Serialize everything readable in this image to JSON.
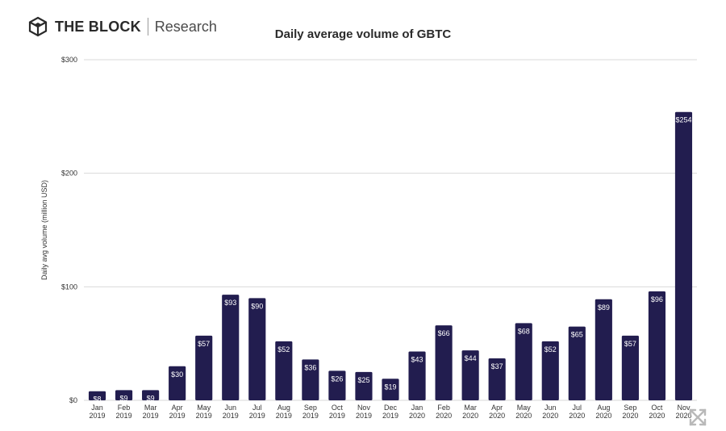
{
  "brand": {
    "name": "THE BLOCK",
    "sub": "Research",
    "logo_icon": "cube-logo-icon"
  },
  "expand_icon": "expand-arrows-icon",
  "colors": {
    "bar": "#221d4f",
    "grid": "#d9d9d9",
    "label_text": "#ffffff",
    "axis_text": "#333333"
  },
  "chart_data": {
    "type": "bar",
    "title": "Daily average volume of GBTC",
    "xlabel": "",
    "ylabel": "Daily avg volume (million USD)",
    "ylim": [
      0,
      300
    ],
    "yticks": [
      0,
      100,
      200,
      300
    ],
    "ytick_labels": [
      "$0",
      "$100",
      "$200",
      "$300"
    ],
    "grid": true,
    "categories": [
      [
        "Jan",
        "2019"
      ],
      [
        "Feb",
        "2019"
      ],
      [
        "Mar",
        "2019"
      ],
      [
        "Apr",
        "2019"
      ],
      [
        "May",
        "2019"
      ],
      [
        "Jun",
        "2019"
      ],
      [
        "Jul",
        "2019"
      ],
      [
        "Aug",
        "2019"
      ],
      [
        "Sep",
        "2019"
      ],
      [
        "Oct",
        "2019"
      ],
      [
        "Nov",
        "2019"
      ],
      [
        "Dec",
        "2019"
      ],
      [
        "Jan",
        "2020"
      ],
      [
        "Feb",
        "2020"
      ],
      [
        "Mar",
        "2020"
      ],
      [
        "Apr",
        "2020"
      ],
      [
        "May",
        "2020"
      ],
      [
        "Jun",
        "2020"
      ],
      [
        "Jul",
        "2020"
      ],
      [
        "Aug",
        "2020"
      ],
      [
        "Sep",
        "2020"
      ],
      [
        "Oct",
        "2020"
      ],
      [
        "Nov",
        "2020"
      ]
    ],
    "values": [
      8,
      9,
      9,
      30,
      57,
      93,
      90,
      52,
      36,
      26,
      25,
      19,
      43,
      66,
      44,
      37,
      68,
      52,
      65,
      89,
      57,
      96,
      254
    ],
    "data_labels": [
      "$8",
      "$9",
      "$9",
      "$30",
      "$57",
      "$93",
      "$90",
      "$52",
      "$36",
      "$26",
      "$25",
      "$19",
      "$43",
      "$66",
      "$44",
      "$37",
      "$68",
      "$52",
      "$65",
      "$89",
      "$57",
      "$96",
      "$254"
    ]
  }
}
